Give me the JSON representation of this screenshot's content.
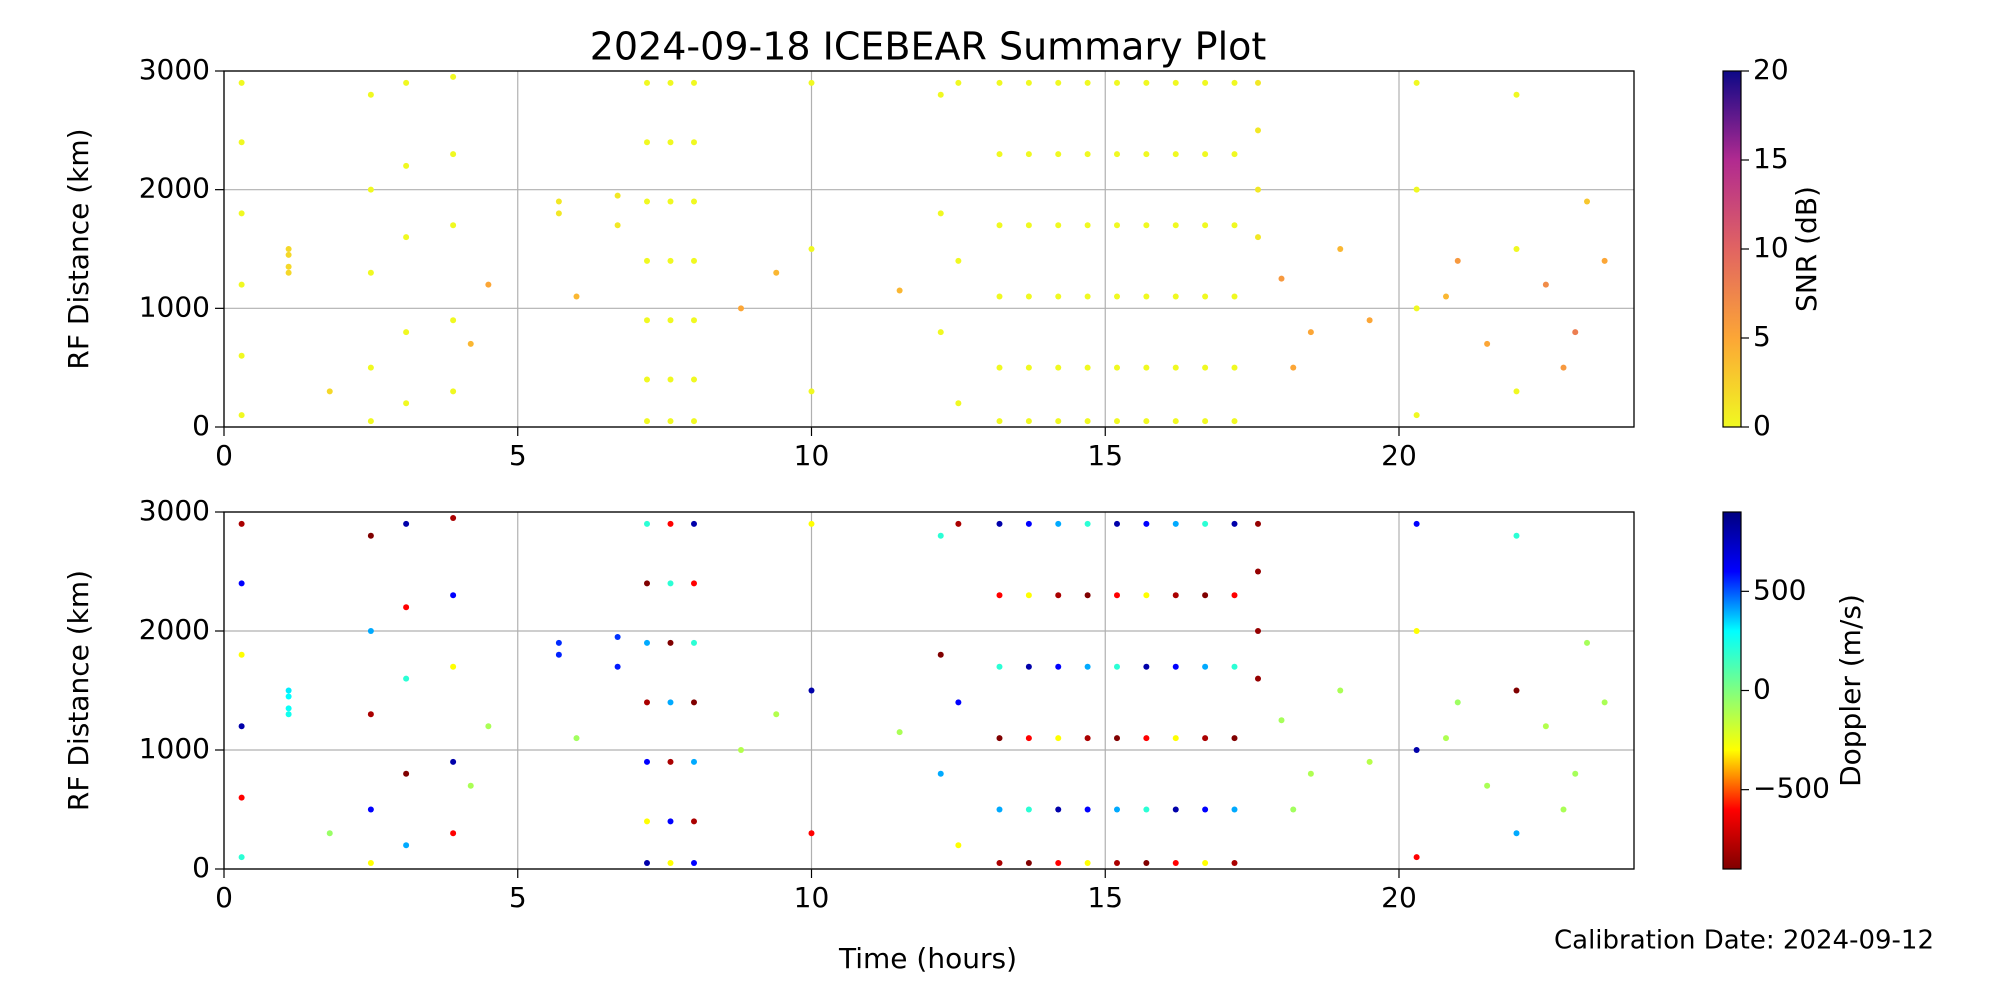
{
  "title": "2024-09-18 ICEBEAR Summary Plot",
  "x_label": "Time (hours)",
  "note": "Calibration Date: 2024-09-12",
  "chart_data": [
    {
      "type": "scatter",
      "y_label": "RF Distance (km)",
      "xlim": [
        0,
        24
      ],
      "xticks": [
        0,
        5,
        10,
        15,
        20
      ],
      "ylim": [
        0,
        3000
      ],
      "yticks": [
        0,
        1000,
        2000,
        3000
      ],
      "grid": true,
      "colorbar": {
        "label": "SNR (dB)",
        "lim": [
          0,
          20
        ],
        "ticks": [
          0,
          5,
          10,
          15,
          20
        ],
        "colormap": [
          "#f0f921",
          "#fca636",
          "#e16462",
          "#b12a90",
          "#0d0887"
        ]
      },
      "x": [
        0.3,
        0.3,
        0.3,
        0.3,
        0.3,
        0.3,
        1.1,
        1.1,
        1.1,
        1.1,
        2.5,
        2.5,
        2.5,
        2.5,
        2.5,
        3.1,
        3.1,
        3.1,
        3.1,
        3.1,
        3.9,
        3.9,
        3.9,
        3.9,
        3.9,
        5.7,
        5.7,
        6.7,
        6.7,
        7.2,
        7.2,
        7.2,
        7.2,
        7.2,
        7.2,
        7.2,
        7.6,
        7.6,
        7.6,
        7.6,
        7.6,
        7.6,
        7.6,
        8.0,
        8.0,
        8.0,
        8.0,
        8.0,
        8.0,
        8.0,
        10,
        10,
        10,
        12.2,
        12.2,
        12.2,
        12.5,
        12.5,
        12.5,
        13.2,
        13.2,
        13.2,
        13.2,
        13.2,
        13.2,
        13.7,
        13.7,
        13.7,
        13.7,
        13.7,
        13.7,
        14.2,
        14.2,
        14.2,
        14.2,
        14.2,
        14.2,
        14.7,
        14.7,
        14.7,
        14.7,
        14.7,
        14.7,
        15.2,
        15.2,
        15.2,
        15.2,
        15.2,
        15.2,
        15.7,
        15.7,
        15.7,
        15.7,
        15.7,
        15.7,
        16.2,
        16.2,
        16.2,
        16.2,
        16.2,
        16.2,
        16.7,
        16.7,
        16.7,
        16.7,
        16.7,
        16.7,
        17.2,
        17.2,
        17.2,
        17.2,
        17.2,
        17.2,
        17.6,
        17.6,
        17.6,
        17.6,
        20.3,
        20.3,
        20.3,
        20.3,
        22,
        22,
        22,
        4.5,
        6,
        8.8,
        11.5,
        18,
        18.5,
        19,
        19.5,
        21,
        21.5,
        22.5,
        23,
        23.5,
        20.8,
        18.2,
        22.8,
        1.8,
        4.2,
        9.4,
        23.2
      ],
      "y": [
        2900,
        2400,
        1800,
        1200,
        600,
        100,
        1450,
        1350,
        1500,
        1300,
        2800,
        2000,
        1300,
        500,
        50,
        2900,
        2200,
        1600,
        800,
        200,
        2950,
        2300,
        1700,
        900,
        300,
        1900,
        1800,
        1950,
        1700,
        2900,
        2400,
        1900,
        1400,
        900,
        400,
        50,
        2900,
        2400,
        1900,
        1400,
        900,
        400,
        50,
        2900,
        2400,
        1900,
        1400,
        900,
        400,
        50,
        2900,
        1500,
        300,
        2800,
        1800,
        800,
        2900,
        1400,
        200,
        2900,
        2300,
        1700,
        1100,
        500,
        50,
        2900,
        2300,
        1700,
        1100,
        500,
        50,
        2900,
        2300,
        1700,
        1100,
        500,
        50,
        2900,
        2300,
        1700,
        1100,
        500,
        50,
        2900,
        2300,
        1700,
        1100,
        500,
        50,
        2900,
        2300,
        1700,
        1100,
        500,
        50,
        2900,
        2300,
        1700,
        1100,
        500,
        50,
        2900,
        2300,
        1700,
        1100,
        500,
        50,
        2900,
        2300,
        1700,
        1100,
        500,
        50,
        2900,
        2500,
        2000,
        1600,
        2900,
        2000,
        1000,
        100,
        2800,
        1500,
        300,
        1200,
        1100,
        1000,
        1150,
        1250,
        800,
        1500,
        900,
        1400,
        700,
        1200,
        800,
        1400,
        1100,
        500,
        500,
        300,
        700,
        1300,
        1900
      ],
      "c": [
        0,
        0,
        0,
        0,
        0,
        0,
        2,
        2,
        2,
        2,
        0,
        0,
        0,
        0,
        0,
        0,
        0,
        0,
        0,
        0,
        0,
        0,
        0,
        0,
        0,
        1,
        1,
        1,
        1,
        0,
        0,
        0,
        0,
        0,
        0,
        0,
        0,
        0,
        0,
        0,
        0,
        0,
        0,
        0,
        0,
        0,
        0,
        0,
        0,
        0,
        0,
        0,
        0,
        0,
        0,
        0,
        0,
        0,
        0,
        0,
        0,
        0,
        0,
        0,
        0,
        0,
        0,
        0,
        0,
        0,
        0,
        0,
        0,
        0,
        0,
        0,
        0,
        0,
        0,
        0,
        0,
        0,
        0,
        0,
        0,
        0,
        0,
        0,
        0,
        0,
        0,
        0,
        0,
        0,
        0,
        0,
        0,
        0,
        0,
        0,
        0,
        0,
        0,
        0,
        0,
        0,
        0,
        0,
        0,
        0,
        0,
        0,
        0,
        1,
        1,
        1,
        1,
        0,
        0,
        0,
        0,
        0,
        0,
        0,
        5,
        4,
        5,
        4,
        6,
        5,
        4,
        5,
        6,
        5,
        7,
        8,
        5,
        4,
        5,
        6,
        2,
        4,
        4,
        3
      ]
    },
    {
      "type": "scatter",
      "y_label": "RF Distance (km)",
      "xlim": [
        0,
        24
      ],
      "xticks": [
        0,
        5,
        10,
        15,
        20
      ],
      "ylim": [
        0,
        3000
      ],
      "yticks": [
        0,
        1000,
        2000,
        3000
      ],
      "grid": true,
      "colorbar": {
        "label": "Doppler (m/s)",
        "lim": [
          -900,
          900
        ],
        "ticks": [
          {
            "value": -500,
            "label": "−500"
          },
          0,
          500
        ],
        "colormap": [
          "#800000",
          "#ff0000",
          "#ffff00",
          "#80ff80",
          "#00ffff",
          "#0000ff",
          "#000080"
        ]
      },
      "x": [
        0.3,
        0.3,
        0.3,
        0.3,
        0.3,
        0.3,
        1.1,
        1.1,
        1.1,
        1.1,
        2.5,
        2.5,
        2.5,
        2.5,
        2.5,
        3.1,
        3.1,
        3.1,
        3.1,
        3.1,
        3.9,
        3.9,
        3.9,
        3.9,
        3.9,
        5.7,
        5.7,
        6.7,
        6.7,
        7.2,
        7.2,
        7.2,
        7.2,
        7.2,
        7.2,
        7.2,
        7.6,
        7.6,
        7.6,
        7.6,
        7.6,
        7.6,
        7.6,
        8.0,
        8.0,
        8.0,
        8.0,
        8.0,
        8.0,
        8.0,
        10,
        10,
        10,
        12.2,
        12.2,
        12.2,
        12.5,
        12.5,
        12.5,
        13.2,
        13.2,
        13.2,
        13.2,
        13.2,
        13.2,
        13.7,
        13.7,
        13.7,
        13.7,
        13.7,
        13.7,
        14.2,
        14.2,
        14.2,
        14.2,
        14.2,
        14.2,
        14.7,
        14.7,
        14.7,
        14.7,
        14.7,
        14.7,
        15.2,
        15.2,
        15.2,
        15.2,
        15.2,
        15.2,
        15.7,
        15.7,
        15.7,
        15.7,
        15.7,
        15.7,
        16.2,
        16.2,
        16.2,
        16.2,
        16.2,
        16.2,
        16.7,
        16.7,
        16.7,
        16.7,
        16.7,
        16.7,
        17.2,
        17.2,
        17.2,
        17.2,
        17.2,
        17.2,
        17.6,
        17.6,
        17.6,
        17.6,
        20.3,
        20.3,
        20.3,
        20.3,
        22,
        22,
        22,
        4.5,
        6,
        8.8,
        11.5,
        18,
        18.5,
        19,
        19.5,
        21,
        21.5,
        22.5,
        23,
        23.5,
        20.8,
        18.2,
        22.8,
        1.8,
        4.2,
        9.4,
        23.2
      ],
      "y": [
        2900,
        2400,
        1800,
        1200,
        600,
        100,
        1450,
        1350,
        1500,
        1300,
        2800,
        2000,
        1300,
        500,
        50,
        2900,
        2200,
        1600,
        800,
        200,
        2950,
        2300,
        1700,
        900,
        300,
        1900,
        1800,
        1950,
        1700,
        2900,
        2400,
        1900,
        1400,
        900,
        400,
        50,
        2900,
        2400,
        1900,
        1400,
        900,
        400,
        50,
        2900,
        2400,
        1900,
        1400,
        900,
        400,
        50,
        2900,
        1500,
        300,
        2800,
        1800,
        800,
        2900,
        1400,
        200,
        2900,
        2300,
        1700,
        1100,
        500,
        50,
        2900,
        2300,
        1700,
        1100,
        500,
        50,
        2900,
        2300,
        1700,
        1100,
        500,
        50,
        2900,
        2300,
        1700,
        1100,
        500,
        50,
        2900,
        2300,
        1700,
        1100,
        500,
        50,
        2900,
        2300,
        1700,
        1100,
        500,
        50,
        2900,
        2300,
        1700,
        1100,
        500,
        50,
        2900,
        2300,
        1700,
        1100,
        500,
        50,
        2900,
        2300,
        1700,
        1100,
        500,
        50,
        2900,
        2500,
        2000,
        1600,
        2900,
        2000,
        1000,
        100,
        2800,
        1500,
        300,
        1200,
        1100,
        1000,
        1150,
        1250,
        800,
        1500,
        900,
        1400,
        700,
        1200,
        800,
        1400,
        1100,
        500,
        500,
        300,
        700,
        1300,
        1900
      ],
      "c": [
        -800,
        600,
        -300,
        800,
        -600,
        200,
        300,
        280,
        320,
        260,
        -900,
        400,
        -800,
        600,
        -300,
        800,
        -600,
        200,
        -900,
        400,
        -800,
        600,
        -300,
        800,
        -600,
        550,
        560,
        540,
        570,
        200,
        -900,
        400,
        -800,
        600,
        -300,
        800,
        -600,
        200,
        -900,
        400,
        -800,
        600,
        -300,
        800,
        -600,
        200,
        -900,
        400,
        -800,
        600,
        -300,
        800,
        -600,
        200,
        -900,
        400,
        -800,
        600,
        -300,
        800,
        -600,
        200,
        -900,
        400,
        -800,
        600,
        -300,
        800,
        -600,
        200,
        -900,
        400,
        -800,
        600,
        -300,
        800,
        -600,
        200,
        -900,
        400,
        -800,
        600,
        -300,
        800,
        -600,
        200,
        -900,
        400,
        -800,
        600,
        -300,
        800,
        -600,
        200,
        -900,
        400,
        -800,
        600,
        -300,
        800,
        -600,
        200,
        -900,
        400,
        -800,
        600,
        -300,
        800,
        -600,
        200,
        -900,
        400,
        -800,
        -850,
        -850,
        -850,
        -850,
        600,
        -300,
        800,
        -600,
        200,
        -900,
        400,
        -100,
        -80,
        -120,
        -100,
        -90,
        -110,
        -100,
        -130,
        -70,
        -100,
        -120,
        -90,
        -100,
        -110,
        -80,
        -100,
        -60,
        -100,
        -120,
        -90
      ]
    }
  ]
}
